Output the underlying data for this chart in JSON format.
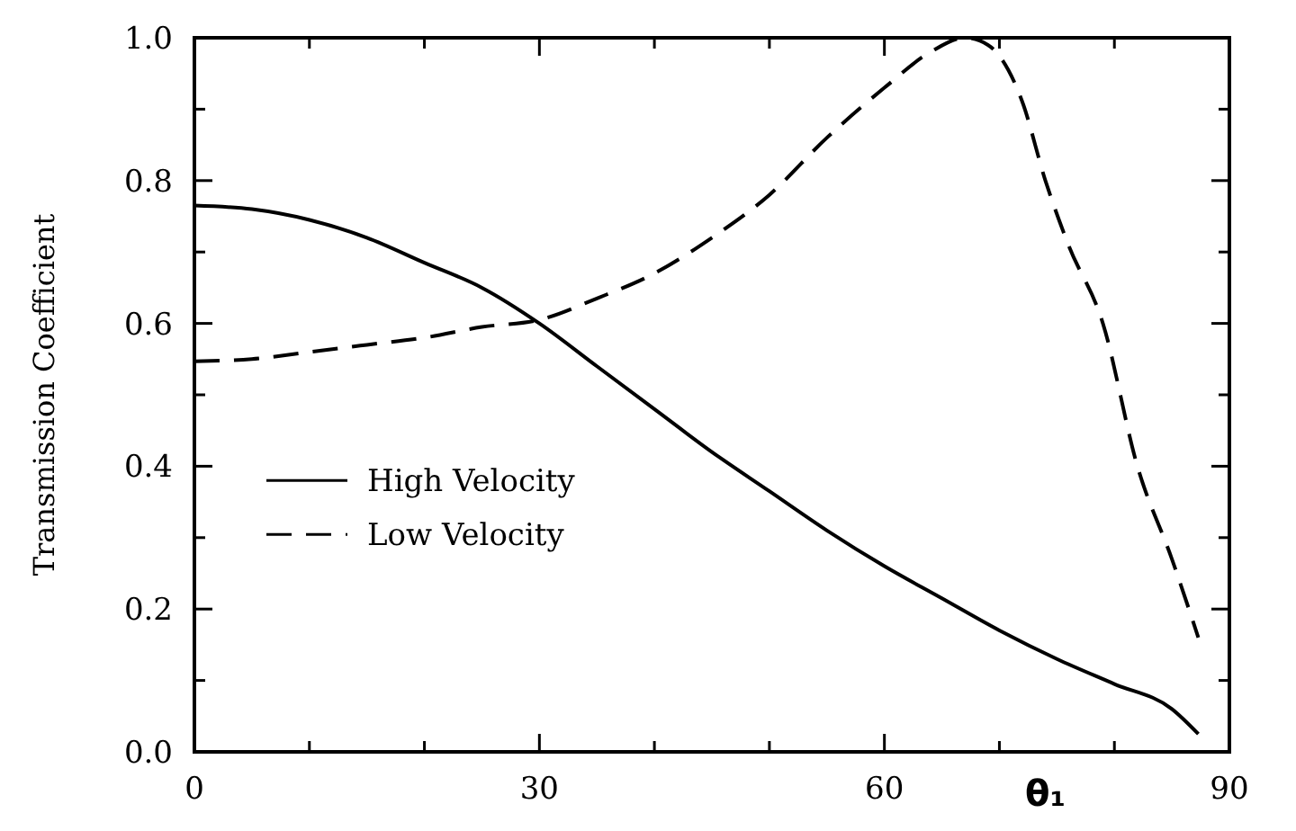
{
  "chart_data": {
    "type": "line",
    "xlabel": "θ₁",
    "ylabel": "Transmission Coefficient",
    "xlim": [
      0,
      90
    ],
    "ylim": [
      0,
      1
    ],
    "xticks": [
      0,
      {
        "value": 10,
        "label": null
      },
      {
        "value": 20,
        "label": null
      },
      30,
      {
        "value": 40,
        "label": null
      },
      {
        "value": 50,
        "label": null
      },
      60,
      {
        "value": 70,
        "label": null
      },
      {
        "value": 80,
        "label": null
      },
      90
    ],
    "yticks": [
      "0.0",
      {
        "value": 0.1,
        "label": null
      },
      0.2,
      {
        "value": 0.3,
        "label": null
      },
      0.4,
      {
        "value": 0.5,
        "label": null
      },
      0.6,
      {
        "value": 0.7,
        "label": null
      },
      0.8,
      {
        "value": 0.9,
        "label": null
      },
      "1.0"
    ],
    "legend": "left",
    "grid": false,
    "series": [
      {
        "name": "High Velocity",
        "color": "#000000",
        "line_style": "solid",
        "x": [
          0,
          5,
          10,
          15,
          20,
          25,
          30,
          35,
          40,
          45,
          50,
          55,
          60,
          65,
          70,
          75,
          80,
          85,
          87.3
        ],
        "values": [
          0.765,
          0.76,
          0.745,
          0.72,
          0.685,
          0.65,
          0.6,
          0.54,
          0.48,
          0.42,
          0.365,
          0.31,
          0.26,
          0.215,
          0.17,
          0.13,
          0.095,
          0.06,
          0.025
        ]
      },
      {
        "name": "Low Velocity",
        "color": "#000000",
        "line_style": "dashed",
        "x": [
          0,
          5,
          10,
          15,
          20,
          25,
          30,
          35,
          40,
          45,
          50,
          55,
          60,
          64,
          67,
          69,
          72,
          74,
          76,
          79,
          82,
          85,
          87.3
        ],
        "values": [
          0.547,
          0.55,
          0.56,
          0.57,
          0.58,
          0.595,
          0.605,
          0.635,
          0.67,
          0.72,
          0.78,
          0.86,
          0.93,
          0.98,
          1.0,
          0.99,
          0.91,
          0.8,
          0.71,
          0.6,
          0.4,
          0.27,
          0.16
        ]
      }
    ]
  }
}
